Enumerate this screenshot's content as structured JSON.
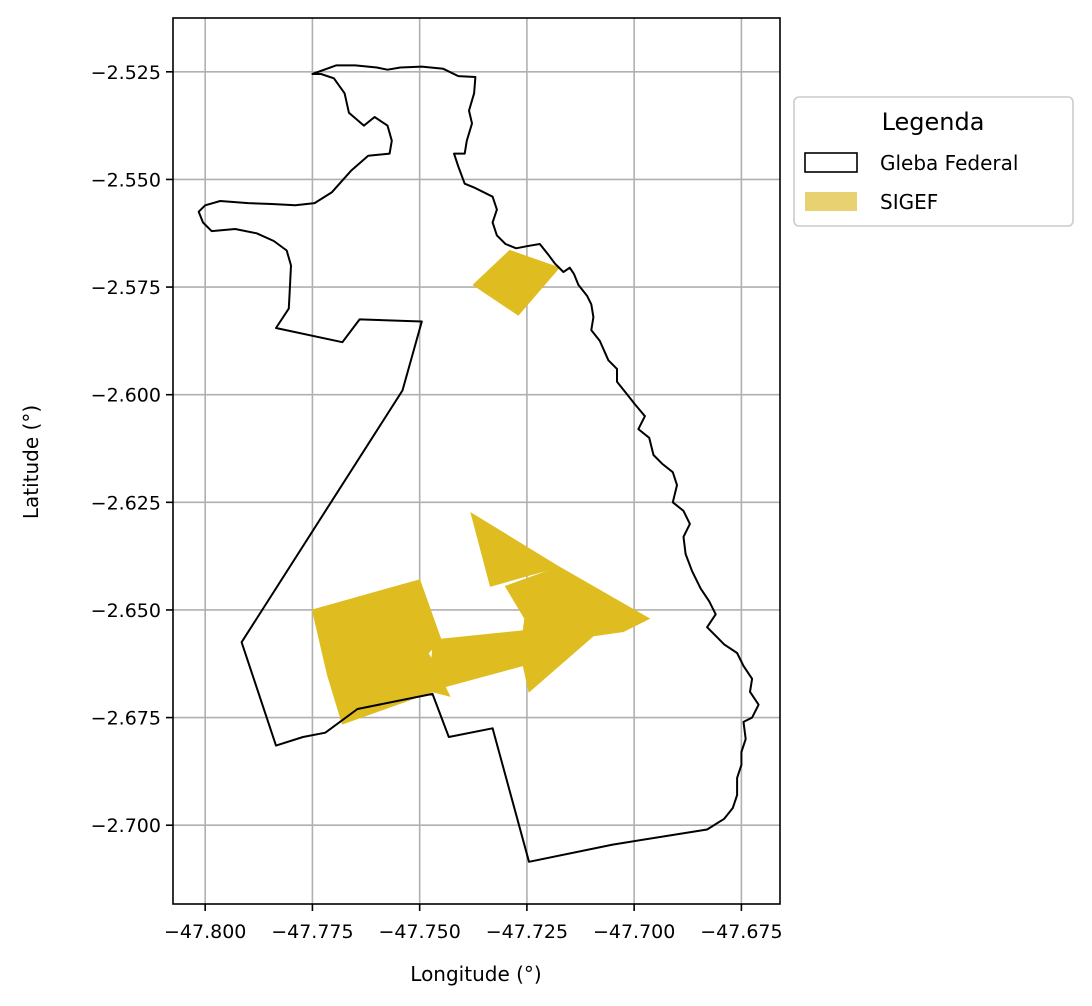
{
  "chart_data": {
    "type": "map",
    "xlabel": "Longitude (°)",
    "ylabel": "Latitude (°)",
    "xlim": [
      -47.8075,
      -47.666
    ],
    "ylim": [
      -2.7183,
      -2.5125
    ],
    "x_ticks": [
      -47.8,
      -47.775,
      -47.75,
      -47.725,
      -47.7,
      -47.675
    ],
    "x_tick_labels": [
      "−47.800",
      "−47.775",
      "−47.750",
      "−47.725",
      "−47.700",
      "−47.675"
    ],
    "y_ticks": [
      -2.525,
      -2.55,
      -2.575,
      -2.6,
      -2.625,
      -2.65,
      -2.675,
      -2.7
    ],
    "y_tick_labels": [
      "−2.525",
      "−2.550",
      "−2.575",
      "−2.600",
      "−2.625",
      "−2.650",
      "−2.675",
      "−2.700"
    ],
    "grid": true,
    "legend": {
      "title": "Legenda",
      "placement": "upper-right-outside",
      "entries": [
        {
          "label": "Gleba Federal",
          "style": "outline",
          "color": "#000000"
        },
        {
          "label": "SIGEF",
          "style": "fill",
          "color": "#e8d170"
        }
      ]
    },
    "colors": {
      "sigef_fill": "#dfbd20",
      "gleba_edge": "#000000"
    },
    "series": [
      {
        "name": "Gleba Federal",
        "kind": "polygon-outline",
        "points": [
          [
            -47.775,
            -2.5255
          ],
          [
            -47.7695,
            -2.5235
          ],
          [
            -47.765,
            -2.5235
          ],
          [
            -47.76,
            -2.524
          ],
          [
            -47.7575,
            -2.5245
          ],
          [
            -47.7545,
            -2.524
          ],
          [
            -47.7495,
            -2.5238
          ],
          [
            -47.7445,
            -2.5243
          ],
          [
            -47.741,
            -2.526
          ],
          [
            -47.737,
            -2.5262
          ],
          [
            -47.7373,
            -2.53
          ],
          [
            -47.7385,
            -2.534
          ],
          [
            -47.7378,
            -2.537
          ],
          [
            -47.739,
            -2.541
          ],
          [
            -47.7395,
            -2.544
          ],
          [
            -47.742,
            -2.544
          ],
          [
            -47.741,
            -2.547
          ],
          [
            -47.7395,
            -2.551
          ],
          [
            -47.737,
            -2.552
          ],
          [
            -47.733,
            -2.554
          ],
          [
            -47.732,
            -2.557
          ],
          [
            -47.733,
            -2.56
          ],
          [
            -47.732,
            -2.563
          ],
          [
            -47.73,
            -2.565
          ],
          [
            -47.7275,
            -2.566
          ],
          [
            -47.725,
            -2.5655
          ],
          [
            -47.722,
            -2.565
          ],
          [
            -47.72,
            -2.5675
          ],
          [
            -47.7185,
            -2.5695
          ],
          [
            -47.7165,
            -2.5715
          ],
          [
            -47.715,
            -2.5705
          ],
          [
            -47.714,
            -2.572
          ],
          [
            -47.713,
            -2.5745
          ],
          [
            -47.711,
            -2.577
          ],
          [
            -47.71,
            -2.579
          ],
          [
            -47.7095,
            -2.582
          ],
          [
            -47.71,
            -2.585
          ],
          [
            -47.708,
            -2.5875
          ],
          [
            -47.706,
            -2.592
          ],
          [
            -47.704,
            -2.594
          ],
          [
            -47.704,
            -2.597
          ],
          [
            -47.702,
            -2.5995
          ],
          [
            -47.7,
            -2.602
          ],
          [
            -47.6975,
            -2.605
          ],
          [
            -47.699,
            -2.608
          ],
          [
            -47.6965,
            -2.61
          ],
          [
            -47.6955,
            -2.614
          ],
          [
            -47.6935,
            -2.616
          ],
          [
            -47.691,
            -2.618
          ],
          [
            -47.69,
            -2.621
          ],
          [
            -47.691,
            -2.625
          ],
          [
            -47.6885,
            -2.627
          ],
          [
            -47.687,
            -2.63
          ],
          [
            -47.6885,
            -2.633
          ],
          [
            -47.688,
            -2.637
          ],
          [
            -47.6865,
            -2.641
          ],
          [
            -47.6845,
            -2.645
          ],
          [
            -47.6825,
            -2.648
          ],
          [
            -47.681,
            -2.651
          ],
          [
            -47.683,
            -2.654
          ],
          [
            -47.681,
            -2.656
          ],
          [
            -47.679,
            -2.658
          ],
          [
            -47.676,
            -2.66
          ],
          [
            -47.6745,
            -2.663
          ],
          [
            -47.6725,
            -2.666
          ],
          [
            -47.673,
            -2.669
          ],
          [
            -47.671,
            -2.672
          ],
          [
            -47.6725,
            -2.675
          ],
          [
            -47.6745,
            -2.676
          ],
          [
            -47.674,
            -2.68
          ],
          [
            -47.675,
            -2.683
          ],
          [
            -47.675,
            -2.686
          ],
          [
            -47.676,
            -2.689
          ],
          [
            -47.676,
            -2.693
          ],
          [
            -47.677,
            -2.696
          ],
          [
            -47.679,
            -2.6985
          ],
          [
            -47.683,
            -2.701
          ],
          [
            -47.705,
            -2.7045
          ],
          [
            -47.7245,
            -2.7085
          ],
          [
            -47.733,
            -2.6775
          ],
          [
            -47.7432,
            -2.6795
          ],
          [
            -47.747,
            -2.6695
          ],
          [
            -47.7645,
            -2.673
          ],
          [
            -47.772,
            -2.6785
          ],
          [
            -47.7772,
            -2.6795
          ],
          [
            -47.7835,
            -2.6815
          ],
          [
            -47.7915,
            -2.6575
          ],
          [
            -47.754,
            -2.599
          ],
          [
            -47.7495,
            -2.583
          ],
          [
            -47.764,
            -2.5825
          ],
          [
            -47.768,
            -2.5878
          ],
          [
            -47.7835,
            -2.5845
          ],
          [
            -47.7805,
            -2.58
          ],
          [
            -47.7803,
            -2.576
          ],
          [
            -47.78,
            -2.57
          ],
          [
            -47.781,
            -2.5665
          ],
          [
            -47.784,
            -2.5643
          ],
          [
            -47.788,
            -2.5625
          ],
          [
            -47.793,
            -2.5615
          ],
          [
            -47.7985,
            -2.562
          ],
          [
            -47.8005,
            -2.56
          ],
          [
            -47.8015,
            -2.5575
          ],
          [
            -47.8,
            -2.556
          ],
          [
            -47.7965,
            -2.555
          ],
          [
            -47.79,
            -2.5555
          ],
          [
            -47.7845,
            -2.5557
          ],
          [
            -47.779,
            -2.556
          ],
          [
            -47.7745,
            -2.5555
          ],
          [
            -47.7705,
            -2.553
          ],
          [
            -47.766,
            -2.548
          ],
          [
            -47.762,
            -2.5445
          ],
          [
            -47.757,
            -2.544
          ],
          [
            -47.7565,
            -2.541
          ],
          [
            -47.7575,
            -2.5375
          ],
          [
            -47.7605,
            -2.5355
          ],
          [
            -47.763,
            -2.5375
          ],
          [
            -47.7665,
            -2.5345
          ],
          [
            -47.7675,
            -2.53
          ],
          [
            -47.77,
            -2.5265
          ],
          [
            -47.773,
            -2.5255
          ],
          [
            -47.775,
            -2.5255
          ]
        ]
      },
      {
        "name": "SIGEF",
        "kind": "polygon-fill",
        "polygons": [
          [
            [
              -47.7375,
              -2.5745
            ],
            [
              -47.729,
              -2.5665
            ],
            [
              -47.7175,
              -2.5705
            ],
            [
              -47.727,
              -2.5815
            ]
          ],
          [
            [
              -47.775,
              -2.65
            ],
            [
              -47.75,
              -2.643
            ],
            [
              -47.745,
              -2.657
            ],
            [
              -47.748,
              -2.66
            ],
            [
              -47.743,
              -2.67
            ],
            [
              -47.747,
              -2.669
            ],
            [
              -47.768,
              -2.6765
            ],
            [
              -47.7715,
              -2.665
            ]
          ],
          [
            [
              -47.747,
              -2.66
            ],
            [
              -47.7485,
              -2.669
            ],
            [
              -47.7225,
              -2.662
            ],
            [
              -47.7225,
              -2.6545
            ],
            [
              -47.747,
              -2.657
            ]
          ],
          [
            [
              -47.738,
              -2.6275
            ],
            [
              -47.7335,
              -2.6445
            ],
            [
              -47.7265,
              -2.6425
            ],
            [
              -47.7175,
              -2.64
            ]
          ],
          [
            [
              -47.73,
              -2.6445
            ],
            [
              -47.7175,
              -2.64
            ],
            [
              -47.6965,
              -2.652
            ],
            [
              -47.7025,
              -2.655
            ],
            [
              -47.7095,
              -2.656
            ],
            [
              -47.7245,
              -2.669
            ],
            [
              -47.7265,
              -2.66
            ],
            [
              -47.7255,
              -2.652
            ]
          ]
        ]
      }
    ]
  }
}
